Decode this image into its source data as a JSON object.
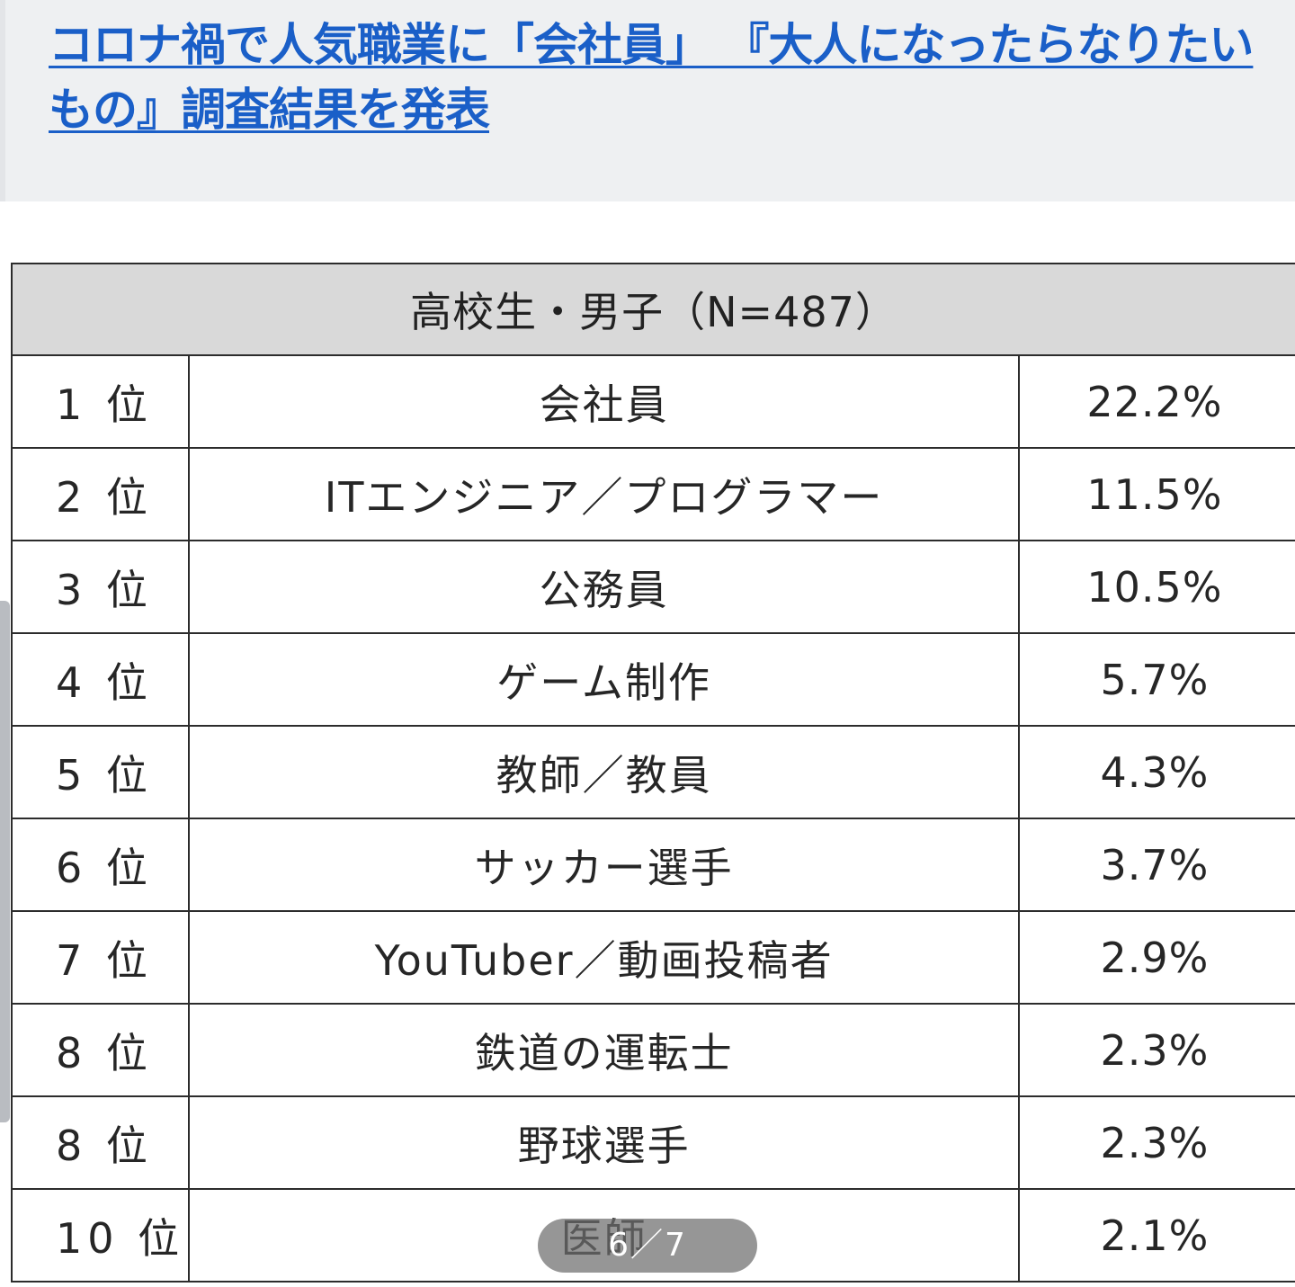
{
  "article": {
    "headline": "コロナ禍で人気職業に「会社員」 『大人になったらなりたいもの』調査結果を発表"
  },
  "table": {
    "header": "高校生・男子（N=487）",
    "rows": [
      {
        "rank": "1 位",
        "job": "会社員",
        "pct": "22.2%"
      },
      {
        "rank": "2 位",
        "job": "ITエンジニア／プログラマー",
        "pct": "11.5%"
      },
      {
        "rank": "3 位",
        "job": "公務員",
        "pct": "10.5%"
      },
      {
        "rank": "4 位",
        "job": "ゲーム制作",
        "pct": "5.7%"
      },
      {
        "rank": "5 位",
        "job": "教師／教員",
        "pct": "4.3%"
      },
      {
        "rank": "6 位",
        "job": "サッカー選手",
        "pct": "3.7%"
      },
      {
        "rank": "7 位",
        "job": "YouTuber／動画投稿者",
        "pct": "2.9%"
      },
      {
        "rank": "8 位",
        "job": "鉄道の運転士",
        "pct": "2.3%"
      },
      {
        "rank": "8 位",
        "job": "野球選手",
        "pct": "2.3%"
      },
      {
        "rank": "10 位",
        "job": "医師",
        "pct": "2.1%"
      }
    ]
  },
  "pager": {
    "text": "6／7"
  }
}
